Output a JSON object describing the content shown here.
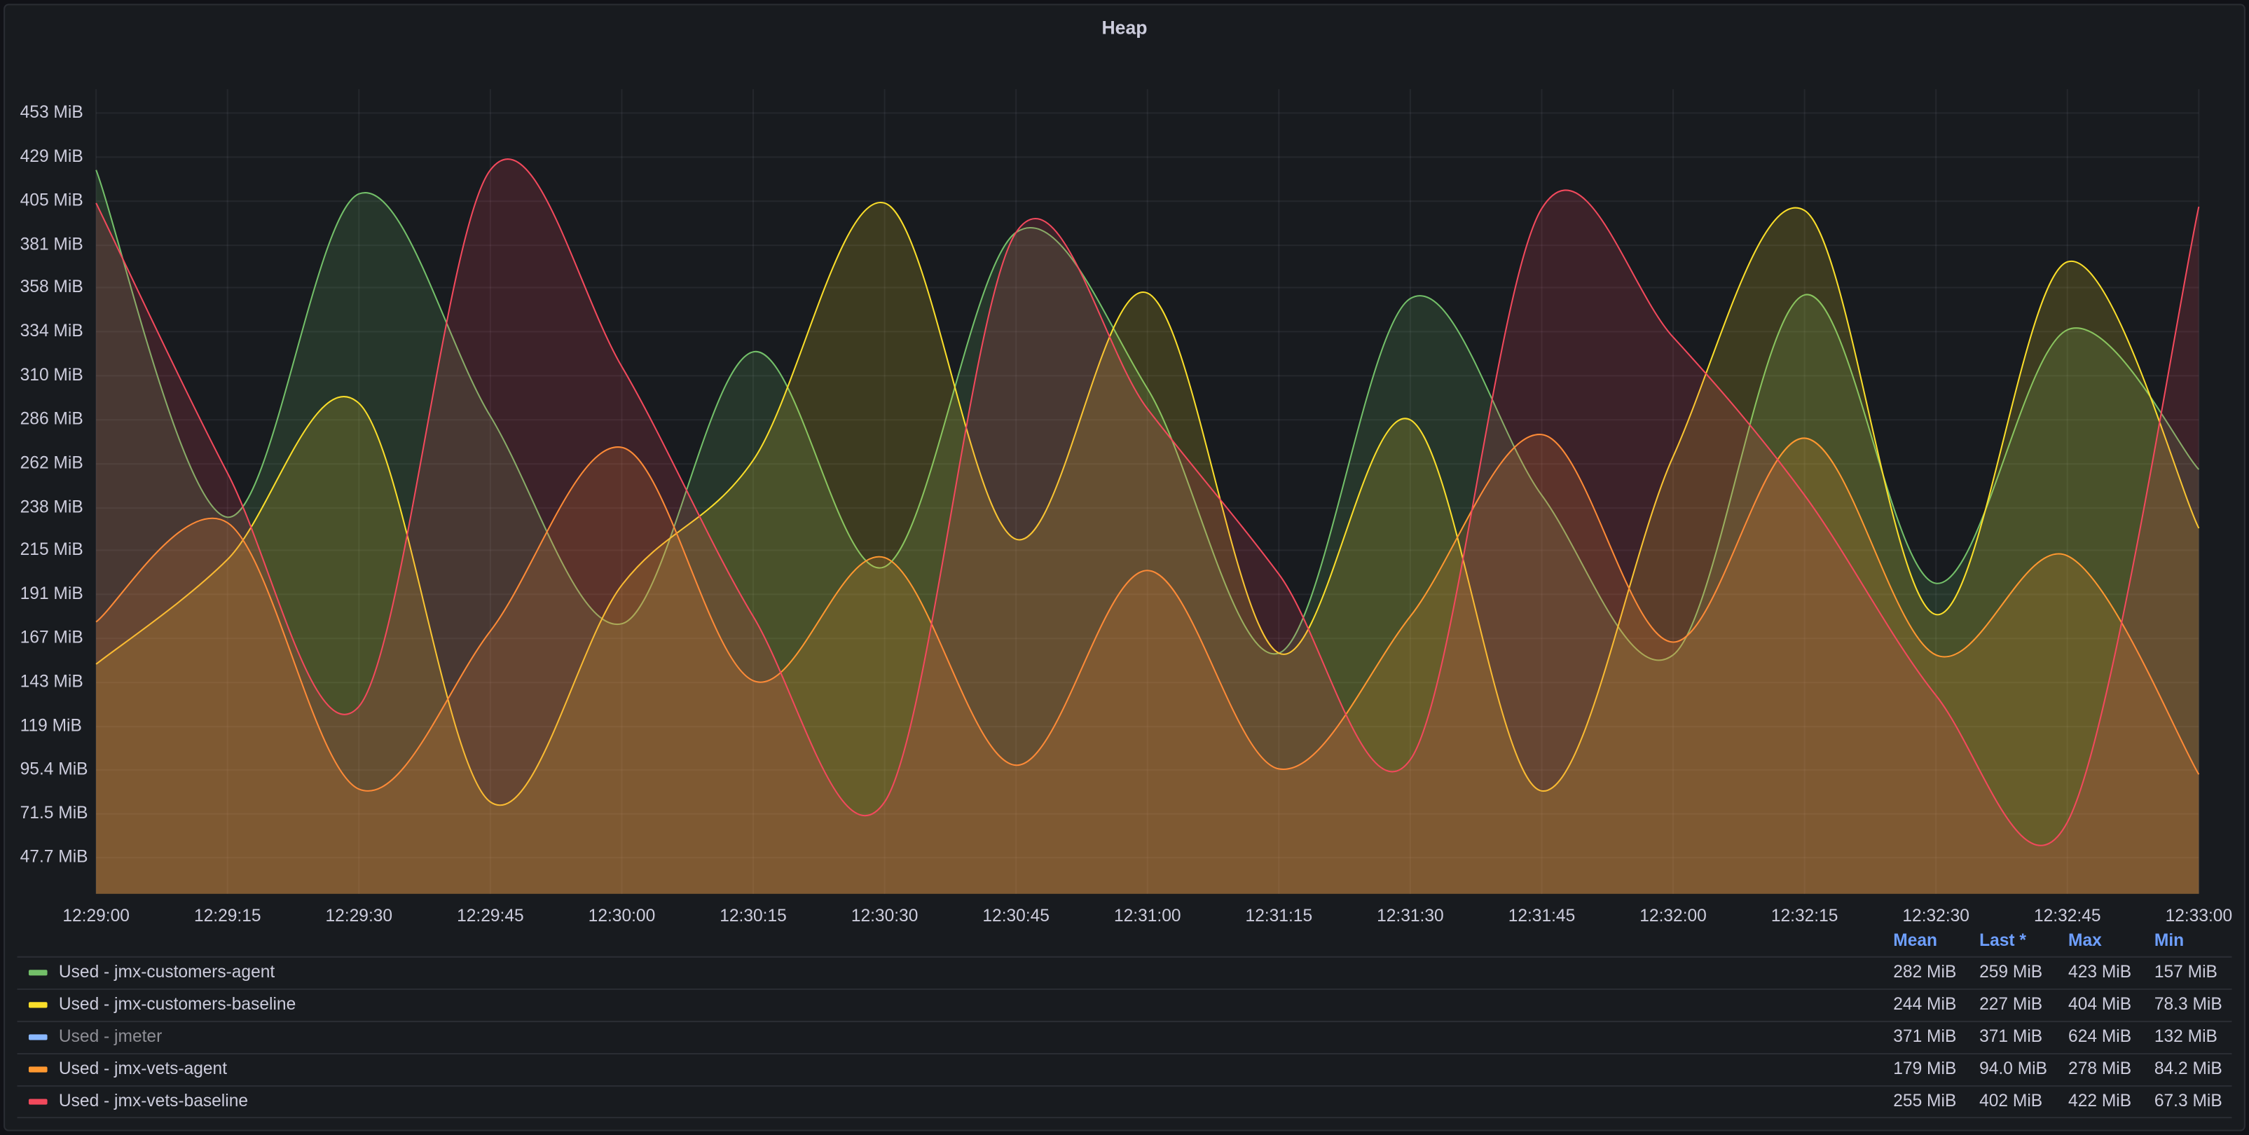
{
  "chart_data": {
    "type": "line",
    "title": "Heap",
    "x": [
      "12:29:00",
      "12:29:15",
      "12:29:30",
      "12:29:45",
      "12:30:00",
      "12:30:15",
      "12:30:30",
      "12:30:45",
      "12:31:00",
      "12:31:15",
      "12:31:30",
      "12:31:45",
      "12:32:00",
      "12:32:15",
      "12:32:30",
      "12:32:45",
      "12:33:00"
    ],
    "ylim": [
      28,
      466
    ],
    "yticks": [
      {
        "value": 47.7,
        "label": "47.7 MiB"
      },
      {
        "value": 71.5,
        "label": "71.5 MiB"
      },
      {
        "value": 95.4,
        "label": "95.4 MiB"
      },
      {
        "value": 119,
        "label": "119 MiB"
      },
      {
        "value": 143,
        "label": "143 MiB"
      },
      {
        "value": 167,
        "label": "167 MiB"
      },
      {
        "value": 191,
        "label": "191 MiB"
      },
      {
        "value": 215,
        "label": "215 MiB"
      },
      {
        "value": 238,
        "label": "238 MiB"
      },
      {
        "value": 262,
        "label": "262 MiB"
      },
      {
        "value": 286,
        "label": "286 MiB"
      },
      {
        "value": 310,
        "label": "310 MiB"
      },
      {
        "value": 334,
        "label": "334 MiB"
      },
      {
        "value": 358,
        "label": "358 MiB"
      },
      {
        "value": 381,
        "label": "381 MiB"
      },
      {
        "value": 405,
        "label": "405 MiB"
      },
      {
        "value": 429,
        "label": "429 MiB"
      },
      {
        "value": 453,
        "label": "453 MiB"
      }
    ],
    "grid": true,
    "legend_columns": [
      "Mean",
      "Last *",
      "Max",
      "Min"
    ],
    "series": [
      {
        "name": "Used - jmx-customers-agent",
        "color": "#73bf69",
        "values": [
          422,
          233,
          409,
          288,
          175,
          323,
          206,
          388,
          303,
          159,
          352,
          245,
          158,
          354,
          197,
          335,
          259
        ],
        "legend_values": [
          "282 MiB",
          "259 MiB",
          "423 MiB",
          "157 MiB"
        ]
      },
      {
        "name": "Used - jmx-customers-baseline",
        "color": "#fade2a",
        "values": [
          153,
          210,
          295,
          78,
          196,
          264,
          404,
          221,
          355,
          159,
          286,
          84,
          266,
          400,
          180,
          372,
          227
        ],
        "legend_values": [
          "244 MiB",
          "227 MiB",
          "404 MiB",
          "78.3 MiB"
        ]
      },
      {
        "name": "Used - jmeter",
        "color": "#8ab8ff",
        "hidden": true,
        "legend_values": [
          "371 MiB",
          "371 MiB",
          "624 MiB",
          "132 MiB"
        ]
      },
      {
        "name": "Used - jmx-vets-agent",
        "color": "#ff9830",
        "values": [
          176,
          230,
          85,
          171,
          271,
          144,
          211,
          98,
          204,
          96,
          179,
          278,
          165,
          276,
          158,
          212,
          93
        ],
        "legend_values": [
          "179 MiB",
          "94.0 MiB",
          "278 MiB",
          "84.2 MiB"
        ]
      },
      {
        "name": "Used - jmx-vets-baseline",
        "color": "#f2495c",
        "values": [
          404,
          257,
          130,
          422,
          315,
          179,
          78,
          388,
          292,
          202,
          101,
          401,
          331,
          245,
          136,
          67,
          402
        ],
        "legend_values": [
          "255 MiB",
          "402 MiB",
          "422 MiB",
          "67.3 MiB"
        ]
      }
    ]
  }
}
